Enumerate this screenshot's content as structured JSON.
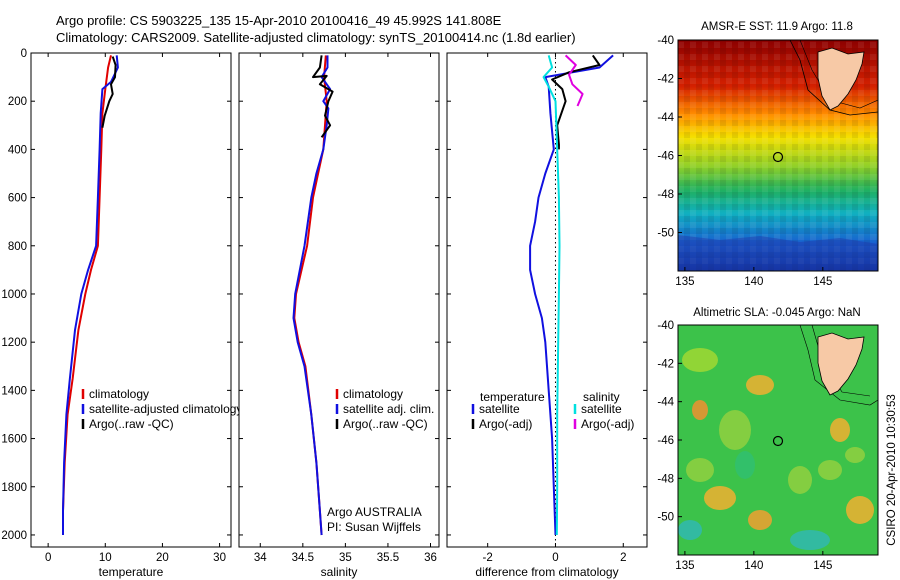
{
  "header": {
    "line1": "Argo profile: CS 5903225_135 15-Apr-2010 20100416_49 45.992S 141.808E",
    "line2": "Climatology: CARS2009. Satellite-adjusted climatology: synTS_20100414.nc (1.8d earlier)"
  },
  "colors": {
    "climatology": "#e00000",
    "satellite": "#1010e0",
    "argo": "#000000",
    "satellite_sal": "#00e0e0",
    "argo_sal": "#e000e0"
  },
  "chart_data": [
    {
      "type": "line",
      "xlabel": "temperature",
      "ylabel": "",
      "xlim": [
        -3,
        32
      ],
      "ylim": [
        2050,
        0
      ],
      "xticks": [
        0,
        10,
        20,
        30
      ],
      "yticks": [
        0,
        200,
        400,
        600,
        800,
        1000,
        1200,
        1400,
        1600,
        1800,
        2000
      ],
      "legend": {
        "position": "lower-right",
        "entries": [
          "climatology",
          "satellite-adjusted climatology",
          "Argo(..raw -QC)"
        ]
      },
      "series": [
        {
          "name": "climatology",
          "color": "#e00000",
          "points": [
            [
              11,
              10
            ],
            [
              10.5,
              60
            ],
            [
              10,
              150
            ],
            [
              9.5,
              250
            ],
            [
              9.3,
              400
            ],
            [
              9,
              600
            ],
            [
              8.7,
              800
            ],
            [
              7.5,
              900
            ],
            [
              6.5,
              1000
            ],
            [
              5.3,
              1150
            ],
            [
              4.3,
              1350
            ],
            [
              3.4,
              1500
            ],
            [
              2.9,
              1700
            ],
            [
              2.6,
              1900
            ]
          ]
        },
        {
          "name": "satellite-adjusted climatology",
          "color": "#1010e0",
          "points": [
            [
              12,
              10
            ],
            [
              12.2,
              60
            ],
            [
              11,
              120
            ],
            [
              9.5,
              150
            ],
            [
              9.2,
              250
            ],
            [
              9,
              400
            ],
            [
              8.7,
              600
            ],
            [
              8.4,
              800
            ],
            [
              7,
              900
            ],
            [
              5.8,
              1000
            ],
            [
              4.7,
              1150
            ],
            [
              3.8,
              1350
            ],
            [
              3.2,
              1500
            ],
            [
              2.8,
              1700
            ],
            [
              2.6,
              1900
            ],
            [
              2.6,
              2000
            ]
          ]
        },
        {
          "name": "Argo(..raw -QC)",
          "color": "#000000",
          "points": [
            [
              11.3,
              15
            ],
            [
              11.8,
              50
            ],
            [
              11.7,
              100
            ],
            [
              11,
              130
            ],
            [
              11.3,
              170
            ],
            [
              10.7,
              200
            ],
            [
              9.9,
              260
            ],
            [
              9.5,
              310
            ]
          ]
        }
      ]
    },
    {
      "type": "line",
      "xlabel": "salinity",
      "ylabel": "",
      "xlim": [
        33.75,
        36.1
      ],
      "ylim": [
        2050,
        0
      ],
      "xticks": [
        34,
        34.5,
        35,
        35.5,
        36
      ],
      "legend": {
        "position": "lower-right",
        "entries": [
          "climatology",
          "satellite adj. clim.",
          "Argo(..raw -QC)"
        ]
      },
      "annotations": [
        "Argo AUSTRALIA",
        "PI: Susan Wijffels"
      ],
      "series": [
        {
          "name": "climatology",
          "color": "#e00000",
          "points": [
            [
              34.77,
              10
            ],
            [
              34.75,
              100
            ],
            [
              34.78,
              200
            ],
            [
              34.76,
              300
            ],
            [
              34.74,
              400
            ],
            [
              34.68,
              500
            ],
            [
              34.62,
              600
            ],
            [
              34.55,
              800
            ],
            [
              34.42,
              1000
            ],
            [
              34.4,
              1100
            ],
            [
              34.45,
              1200
            ],
            [
              34.53,
              1300
            ],
            [
              34.6,
              1500
            ],
            [
              34.66,
              1700
            ],
            [
              34.7,
              1900
            ],
            [
              34.72,
              2000
            ]
          ]
        },
        {
          "name": "satellite adj. clim.",
          "color": "#1010e0",
          "points": [
            [
              34.79,
              10
            ],
            [
              34.79,
              60
            ],
            [
              34.72,
              100
            ],
            [
              34.82,
              150
            ],
            [
              34.74,
              200
            ],
            [
              34.8,
              230
            ],
            [
              34.78,
              300
            ],
            [
              34.74,
              400
            ],
            [
              34.66,
              500
            ],
            [
              34.6,
              600
            ],
            [
              34.52,
              800
            ],
            [
              34.41,
              1000
            ],
            [
              34.39,
              1100
            ],
            [
              34.44,
              1200
            ],
            [
              34.52,
              1300
            ],
            [
              34.6,
              1500
            ],
            [
              34.66,
              1700
            ],
            [
              34.7,
              1900
            ],
            [
              34.72,
              2000
            ]
          ]
        },
        {
          "name": "Argo(..raw -QC)",
          "color": "#000000",
          "points": [
            [
              34.72,
              10
            ],
            [
              34.7,
              60
            ],
            [
              34.62,
              100
            ],
            [
              34.78,
              95
            ],
            [
              34.7,
              130
            ],
            [
              34.85,
              160
            ],
            [
              34.8,
              200
            ],
            [
              34.76,
              260
            ],
            [
              34.82,
              300
            ],
            [
              34.72,
              350
            ]
          ]
        }
      ]
    },
    {
      "type": "line",
      "xlabel": "difference from climatology",
      "ylabel": "",
      "xlim": [
        -3.2,
        2.7
      ],
      "ylim": [
        2050,
        0
      ],
      "xticks": [
        -2,
        0,
        2
      ],
      "legend": {
        "position": "lower-right",
        "entries": [
          "temperature",
          "satellite",
          "Argo(-adj)",
          "salinity",
          "satellite",
          "Argo(-adj)"
        ]
      },
      "series": [
        {
          "name": "temperature satellite",
          "color": "#1010e0",
          "points": [
            [
              1.7,
              10
            ],
            [
              1.3,
              60
            ],
            [
              0.5,
              80
            ],
            [
              -0.3,
              100
            ],
            [
              -0.2,
              140
            ],
            [
              -0.15,
              250
            ],
            [
              -0.05,
              400
            ],
            [
              -0.3,
              500
            ],
            [
              -0.5,
              600
            ],
            [
              -0.6,
              700
            ],
            [
              -0.75,
              800
            ],
            [
              -0.75,
              900
            ],
            [
              -0.6,
              1000
            ],
            [
              -0.4,
              1100
            ],
            [
              -0.3,
              1200
            ],
            [
              -0.2,
              1400
            ],
            [
              -0.1,
              1600
            ],
            [
              -0.05,
              1800
            ],
            [
              0,
              2000
            ]
          ]
        },
        {
          "name": "temperature Argo(-adj)",
          "color": "#000000",
          "points": [
            [
              1.1,
              10
            ],
            [
              1.3,
              50
            ],
            [
              0.4,
              80
            ],
            [
              -0.1,
              110
            ],
            [
              0.2,
              150
            ],
            [
              0.3,
              200
            ],
            [
              0.05,
              300
            ],
            [
              0.1,
              380
            ],
            [
              0.1,
              400
            ]
          ]
        },
        {
          "name": "salinity satellite",
          "color": "#00e0e0",
          "points": [
            [
              -0.2,
              10
            ],
            [
              -0.1,
              60
            ],
            [
              -0.35,
              100
            ],
            [
              -0.2,
              140
            ],
            [
              0,
              200
            ],
            [
              0.05,
              400
            ],
            [
              0.1,
              600
            ],
            [
              0.12,
              800
            ],
            [
              0.1,
              1000
            ],
            [
              0.08,
              1200
            ],
            [
              0.05,
              1500
            ],
            [
              0.05,
              1800
            ],
            [
              0.04,
              2000
            ]
          ]
        },
        {
          "name": "salinity Argo(-adj)",
          "color": "#e000e0",
          "points": [
            [
              0.3,
              10
            ],
            [
              0.6,
              50
            ],
            [
              0.4,
              90
            ],
            [
              0.5,
              130
            ],
            [
              0.8,
              170
            ],
            [
              0.65,
              220
            ]
          ]
        }
      ]
    },
    {
      "type": "heatmap",
      "title": "AMSR-E SST: 11.9 Argo: 11.8",
      "xticks": [
        135,
        140,
        145
      ],
      "yticks": [
        -40,
        -42,
        -44,
        -46,
        -48,
        -50
      ],
      "xlim": [
        134.5,
        149
      ],
      "ylim": [
        -52,
        -40
      ],
      "marker": {
        "lon": 141.808,
        "lat": -45.992
      }
    },
    {
      "type": "heatmap",
      "title": "Altimetric SLA: -0.045 Argo: NaN",
      "xticks": [
        135,
        140,
        145
      ],
      "yticks": [
        -40,
        -42,
        -44,
        -46,
        -48,
        -50
      ],
      "xlim": [
        134.5,
        149
      ],
      "ylim": [
        -52,
        -40
      ],
      "marker": {
        "lon": 141.808,
        "lat": -45.992
      }
    }
  ],
  "credit": "CSIRO 20-Apr-2010 10:30:53"
}
